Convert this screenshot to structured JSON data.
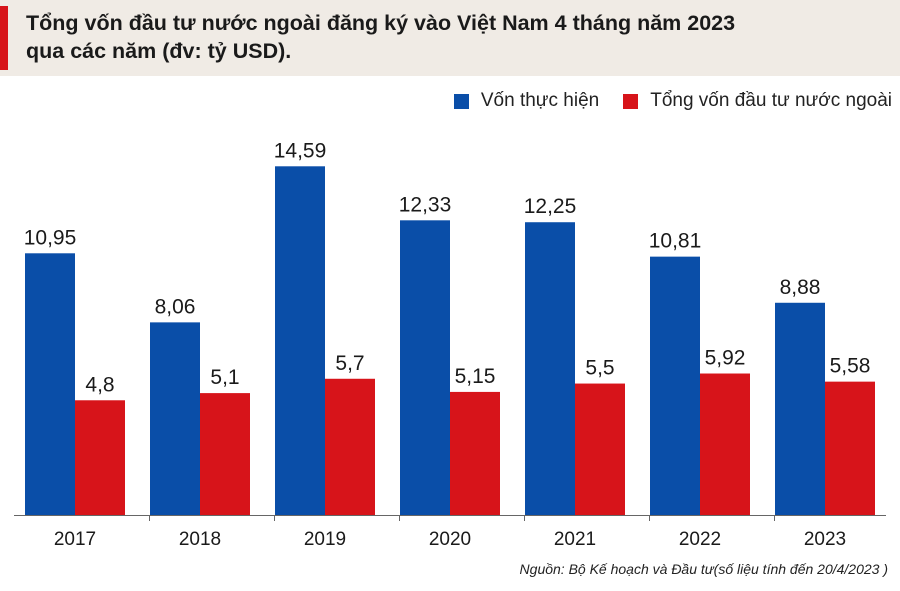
{
  "title_lines": [
    "Tổng vốn đầu tư nước ngoài đăng ký vào Việt Nam 4 tháng năm 2023",
    "qua các năm (đv: tỷ USD)."
  ],
  "legend": {
    "series_1": "Vốn thực hiện",
    "series_2": "Tổng vốn đầu tư nước ngoài"
  },
  "source": "Nguồn: Bộ Kế hoạch và Đầu tư(số liệu tính đến 20/4/2023 )",
  "colors": {
    "series_1": "#0a4ea8",
    "series_2": "#d7141a",
    "title_accent": "#d7141a",
    "title_background": "#f0ebe5"
  },
  "chart_data": {
    "type": "bar",
    "categories": [
      "2017",
      "2018",
      "2019",
      "2020",
      "2021",
      "2022",
      "2023"
    ],
    "series": [
      {
        "name": "Vốn thực hiện",
        "values": [
          10.95,
          8.06,
          14.59,
          12.33,
          12.25,
          10.81,
          8.88
        ],
        "labels": [
          "10,95",
          "8,06",
          "14,59",
          "12,33",
          "12,25",
          "10,81",
          "8,88"
        ]
      },
      {
        "name": "Tổng vốn đầu tư nước ngoài",
        "values": [
          4.8,
          5.1,
          5.7,
          5.15,
          5.5,
          5.92,
          5.58
        ],
        "labels": [
          "4,8",
          "5,1",
          "5,7",
          "5,15",
          "5,5",
          "5,92",
          "5,58"
        ]
      }
    ],
    "xlabel": "",
    "ylabel": "",
    "ylim": [
      0,
      16
    ],
    "grid": false,
    "legend_position": "top-right"
  }
}
